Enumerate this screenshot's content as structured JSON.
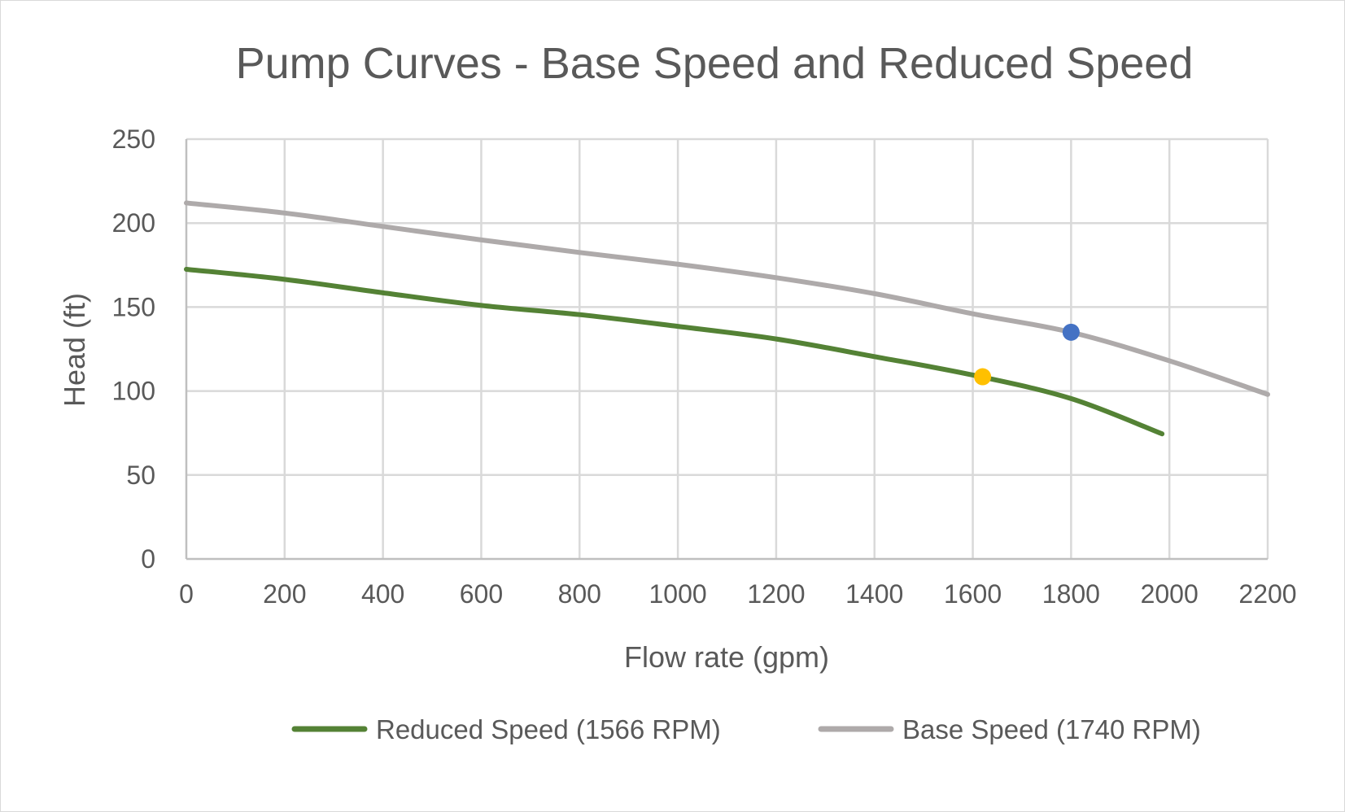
{
  "chart_data": {
    "type": "line",
    "title": "Pump Curves - Base Speed and Reduced Speed",
    "xlabel": "Flow rate (gpm)",
    "ylabel": "Head (ft)",
    "xlim": [
      0,
      2200
    ],
    "ylim": [
      0,
      250
    ],
    "xticks": [
      0,
      200,
      400,
      600,
      800,
      1000,
      1200,
      1400,
      1600,
      1800,
      2000,
      2200
    ],
    "yticks": [
      0,
      50,
      100,
      150,
      200,
      250
    ],
    "grid": true,
    "legend_position": "bottom",
    "series": [
      {
        "name": "Reduced Speed (1566 RPM)",
        "color": "#548235",
        "x": [
          0,
          200,
          400,
          600,
          800,
          1000,
          1200,
          1400,
          1600,
          1800,
          1985
        ],
        "y": [
          172.5,
          166.5,
          158.5,
          151,
          145.5,
          138.5,
          131,
          120.5,
          109.5,
          95.5,
          74.5
        ]
      },
      {
        "name": "Base Speed (1740 RPM)",
        "color": "#AEAAAA",
        "x": [
          0,
          200,
          400,
          600,
          800,
          1000,
          1200,
          1400,
          1600,
          1800,
          2000,
          2200
        ],
        "y": [
          212,
          206,
          198,
          190,
          182.5,
          175.5,
          167.5,
          158,
          146,
          135,
          118,
          98
        ]
      }
    ],
    "points": [
      {
        "name": "Base speed operating point",
        "x": 1800,
        "y": 135,
        "color": "#4472C4"
      },
      {
        "name": "Reduced speed operating point",
        "x": 1620,
        "y": 108.5,
        "color": "#FFC000"
      }
    ],
    "colors": {
      "grid": "#d9d9d9",
      "axis": "#bfbfbf",
      "text": "#595959"
    }
  }
}
